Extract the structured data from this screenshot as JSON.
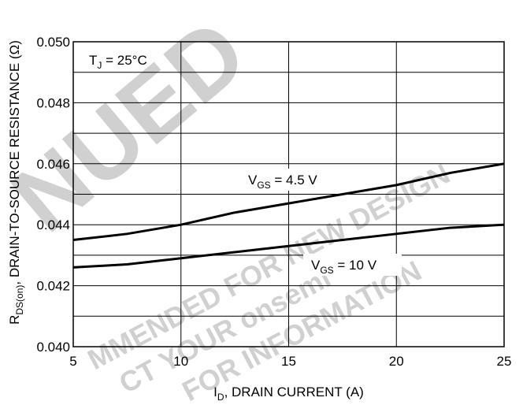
{
  "chart_data": {
    "type": "line",
    "xlabel": {
      "main": "I",
      "sub": "D",
      "rest": ", DRAIN CURRENT (A)"
    },
    "ylabel": {
      "main": "R",
      "sub": "DS(on)",
      "rest": ", DRAIN-TO-SOURCE RESISTANCE (Ω)"
    },
    "annotation": {
      "main": "T",
      "sub": "J",
      "rest": " = 25°C"
    },
    "xlim": [
      5,
      25
    ],
    "xticks": [
      5,
      10,
      15,
      20,
      25
    ],
    "ylim": [
      0.04,
      0.05
    ],
    "yticks": [
      {
        "value": 0.04,
        "label": "0.040"
      },
      {
        "value": 0.042,
        "label": "0.042"
      },
      {
        "value": 0.044,
        "label": "0.044"
      },
      {
        "value": 0.046,
        "label": "0.046"
      },
      {
        "value": 0.048,
        "label": "0.048"
      },
      {
        "value": 0.05,
        "label": "0.050"
      }
    ],
    "ygrid": [
      0.041,
      0.043,
      0.045,
      0.047,
      0.049
    ],
    "grid": true,
    "watermark": [
      "NUED",
      "MMENDED FOR NEW DESIGN",
      "CT YOUR onsemi",
      "FOR INFORMATION"
    ],
    "series": [
      {
        "name": {
          "main": "V",
          "sub": "GS",
          "rest": " = 4.5 V"
        },
        "color": "#000000",
        "x": [
          5,
          7.5,
          10,
          12.5,
          15,
          17.5,
          20,
          22.5,
          25
        ],
        "values": [
          0.0435,
          0.0437,
          0.044,
          0.0444,
          0.0447,
          0.045,
          0.0453,
          0.0457,
          0.046
        ]
      },
      {
        "name": {
          "main": "V",
          "sub": "GS",
          "rest": " = 10 V"
        },
        "color": "#000000",
        "x": [
          5,
          7.5,
          10,
          12.5,
          15,
          17.5,
          20,
          22.5,
          25
        ],
        "values": [
          0.0426,
          0.0427,
          0.0429,
          0.0431,
          0.0433,
          0.0435,
          0.0437,
          0.0439,
          0.044
        ]
      }
    ]
  }
}
